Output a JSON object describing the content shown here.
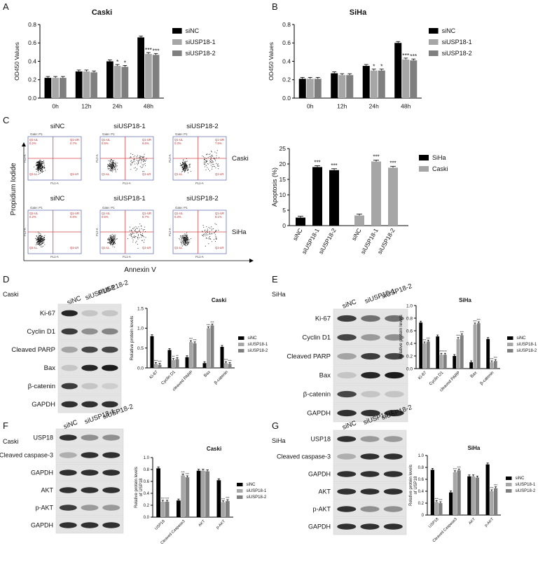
{
  "panels": {
    "A": {
      "letter": "A"
    },
    "B": {
      "letter": "B"
    },
    "C": {
      "letter": "C",
      "y_axis": "Propidium Iodide",
      "x_axis": "Annexin V",
      "cols": [
        "siNC",
        "siUSP18-1",
        "siUSP18-2"
      ],
      "rows": [
        "Caski",
        "SiHa"
      ],
      "gate": "Gate: P1",
      "axis_x": "FL1-A",
      "axis_y": "FL2-A",
      "quad": [
        "Q1-UL",
        "Q1-UR",
        "Q1-LL",
        "Q1-LR"
      ],
      "values": [
        [
          [
            "0.2%",
            "0.7%"
          ],
          [
            "0.5%",
            "6.6%"
          ],
          [
            "0.3%",
            "7.5%"
          ]
        ],
        [
          [
            "0.2%",
            "0.6%"
          ],
          [
            "0.5%",
            "6.7%"
          ],
          [
            "0.3%",
            "6.1%"
          ]
        ]
      ]
    },
    "D": {
      "letter": "D",
      "cell": "Caski",
      "bands": [
        "Ki-67",
        "Cyclin D1",
        "Cleaved PARP",
        "Bax",
        "β-catenin",
        "GAPDH"
      ],
      "lanes": [
        "siNC",
        "siUSP18-1",
        "siUSP18-2"
      ]
    },
    "E": {
      "letter": "E",
      "cell": "SiHa",
      "bands": [
        "Ki-67",
        "Cyclin D1",
        "Cleaved PARP",
        "Bax",
        "β-catenin",
        "GAPDH"
      ],
      "lanes": [
        "siNC",
        "siUSP18-1",
        "siUSP18-2"
      ]
    },
    "F": {
      "letter": "F",
      "cell": "Caski",
      "bands": [
        "USP18",
        "Cleaved caspase-3",
        "GAPDH",
        "AKT",
        "p-AKT",
        "GAPDH"
      ],
      "lanes": [
        "siNC",
        "siUSP18-1",
        "siUSP18-2"
      ]
    },
    "G": {
      "letter": "G",
      "cell": "SiHa",
      "bands": [
        "USP18",
        "Cleaved caspase-3",
        "GAPDH",
        "AKT",
        "p-AKT",
        "GAPDH"
      ],
      "lanes": [
        "siNC",
        "siUSP18-1",
        "siUSP18-2"
      ]
    }
  },
  "colors": {
    "siNC": "#000000",
    "siUSP18-1": "#a6a6a6",
    "siUSP18-2": "#7f7f7f",
    "SiHa": "#000000",
    "Caski": "#a6a6a6"
  },
  "chart_data": [
    {
      "id": "A",
      "type": "bar",
      "title": "Caski",
      "ylabel": "OD450 Values",
      "ylim": [
        0,
        0.8
      ],
      "yticks": [
        "0.0",
        "0.2",
        "0.4",
        "0.6",
        "0.8"
      ],
      "categories": [
        "0h",
        "12h",
        "24h",
        "48h"
      ],
      "series": [
        {
          "name": "siNC",
          "values": [
            0.22,
            0.29,
            0.4,
            0.66
          ]
        },
        {
          "name": "siUSP18-1",
          "values": [
            0.22,
            0.29,
            0.35,
            0.48
          ]
        },
        {
          "name": "siUSP18-2",
          "values": [
            0.22,
            0.28,
            0.34,
            0.47
          ]
        }
      ],
      "stars": [
        [
          "",
          "",
          ""
        ],
        [
          "",
          "",
          ""
        ],
        [
          "",
          "*",
          "*"
        ],
        [
          "",
          "***",
          "***"
        ]
      ]
    },
    {
      "id": "B",
      "type": "bar",
      "title": "SiHa",
      "ylabel": "OD450 Values",
      "ylim": [
        0,
        0.8
      ],
      "yticks": [
        "0.0",
        "0.2",
        "0.4",
        "0.6",
        "0.8"
      ],
      "categories": [
        "0h",
        "12h",
        "24h",
        "48h"
      ],
      "series": [
        {
          "name": "siNC",
          "values": [
            0.21,
            0.27,
            0.35,
            0.6
          ]
        },
        {
          "name": "siUSP18-1",
          "values": [
            0.21,
            0.25,
            0.3,
            0.42
          ]
        },
        {
          "name": "siUSP18-2",
          "values": [
            0.21,
            0.25,
            0.3,
            0.41
          ]
        }
      ],
      "stars": [
        [
          "",
          "",
          ""
        ],
        [
          "",
          "",
          ""
        ],
        [
          "",
          "*",
          "*"
        ],
        [
          "",
          "***",
          "***"
        ]
      ]
    },
    {
      "id": "C",
      "type": "bar",
      "ylabel": "Apoptosis (%)",
      "ylim": [
        0,
        25
      ],
      "yticks": [
        "0",
        "5",
        "10",
        "15",
        "20",
        "25"
      ],
      "categories": [
        "siNC",
        "siUSP18-1",
        "siUSP18-2",
        "siNC",
        "siUSP18-1",
        "siUSP18-2"
      ],
      "legend": [
        "SiHa",
        "Caski"
      ],
      "values": [
        2.6,
        19.0,
        18.0,
        3.3,
        20.8,
        18.8
      ],
      "groups": [
        "SiHa",
        "SiHa",
        "SiHa",
        "Caski",
        "Caski",
        "Caski"
      ],
      "stars": [
        "",
        "***",
        "***",
        "",
        "***",
        "***"
      ]
    },
    {
      "id": "D",
      "type": "bar",
      "title": "Caski",
      "ylabel": "Relative protein levels",
      "ylim": [
        0,
        1.5
      ],
      "yticks": [
        "0.0",
        "0.5",
        "1.0",
        "1.5"
      ],
      "categories": [
        "Ki-67",
        "Cyclin D1",
        "cleaved PARP",
        "Bax",
        "β-catenin"
      ],
      "series": [
        {
          "name": "siNC",
          "values": [
            0.8,
            0.45,
            0.27,
            0.12,
            0.53
          ]
        },
        {
          "name": "siUSP18-1",
          "values": [
            0.1,
            0.2,
            0.65,
            1.0,
            0.12
          ]
        },
        {
          "name": "siUSP18-2",
          "values": [
            0.08,
            0.22,
            0.62,
            1.07,
            0.1
          ]
        }
      ],
      "stars": [
        [
          "",
          "***",
          "***"
        ],
        [
          "",
          "**",
          "**"
        ],
        [
          "",
          "***",
          "***"
        ],
        [
          "",
          "***",
          "***"
        ],
        [
          "",
          "***",
          "***"
        ]
      ]
    },
    {
      "id": "E",
      "type": "bar",
      "title": "SiHa",
      "ylabel": "Relative protein levels",
      "ylim": [
        0,
        1.0
      ],
      "yticks": [
        "0.0",
        "0.2",
        "0.4",
        "0.6",
        "0.8",
        "1.0"
      ],
      "categories": [
        "Ki-67",
        "Cyclin D1",
        "cleaved PARP",
        "Bax",
        "β-catenin"
      ],
      "series": [
        {
          "name": "siNC",
          "values": [
            0.73,
            0.51,
            0.2,
            0.1,
            0.47
          ]
        },
        {
          "name": "siUSP18-1",
          "values": [
            0.4,
            0.22,
            0.47,
            0.7,
            0.1
          ]
        },
        {
          "name": "siUSP18-2",
          "values": [
            0.43,
            0.22,
            0.53,
            0.72,
            0.12
          ]
        }
      ],
      "stars": [
        [
          "",
          "***",
          "***"
        ],
        [
          "",
          "***",
          "***"
        ],
        [
          "",
          "***",
          "***"
        ],
        [
          "",
          "***",
          "***"
        ],
        [
          "",
          "***",
          "***"
        ]
      ]
    },
    {
      "id": "F",
      "type": "bar",
      "title": "Caski",
      "ylabel": "Relative protein levels\nof USP18",
      "ylim": [
        0,
        1.0
      ],
      "yticks": [
        "0.0",
        "0.2",
        "0.4",
        "0.6",
        "0.8",
        "1.0"
      ],
      "categories": [
        "USP18",
        "Cleaved Caspase3",
        "AKT",
        "p-AKT"
      ],
      "series": [
        {
          "name": "siNC",
          "values": [
            0.82,
            0.28,
            0.78,
            0.62
          ]
        },
        {
          "name": "siUSP18-1",
          "values": [
            0.26,
            0.7,
            0.78,
            0.25
          ]
        },
        {
          "name": "siUSP18-2",
          "values": [
            0.26,
            0.67,
            0.77,
            0.27
          ]
        }
      ],
      "stars": [
        [
          "",
          "***",
          "***"
        ],
        [
          "",
          "***",
          "***"
        ],
        [
          "",
          "",
          ""
        ],
        [
          "",
          "***",
          "***"
        ]
      ]
    },
    {
      "id": "G",
      "type": "bar",
      "title": "SiHa",
      "ylabel": "Relative protein levels\nof USP18",
      "ylim": [
        0,
        1.0
      ],
      "yticks": [
        "0",
        "0.2",
        "0.4",
        "0.6",
        "0.8",
        "1.0"
      ],
      "categories": [
        "USP18",
        "Cleaved Caspase3",
        "AKT",
        "p-AKT"
      ],
      "series": [
        {
          "name": "siNC",
          "values": [
            0.76,
            0.38,
            0.65,
            0.85
          ]
        },
        {
          "name": "siUSP18-1",
          "values": [
            0.22,
            0.72,
            0.65,
            0.4
          ]
        },
        {
          "name": "siUSP18-2",
          "values": [
            0.2,
            0.75,
            0.63,
            0.45
          ]
        }
      ],
      "stars": [
        [
          "",
          "***",
          "***"
        ],
        [
          "",
          "***",
          "***"
        ],
        [
          "",
          "",
          ""
        ],
        [
          "",
          "***",
          "***"
        ]
      ]
    }
  ]
}
